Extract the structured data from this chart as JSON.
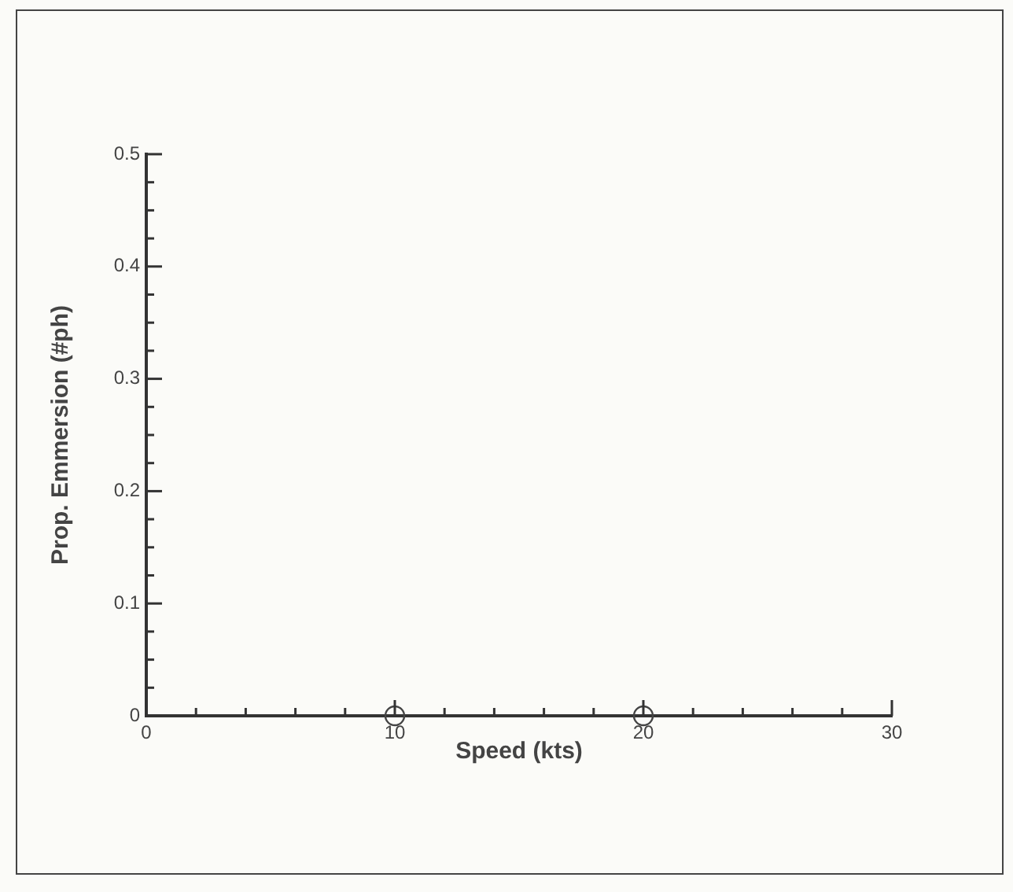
{
  "chart_data": {
    "type": "scatter",
    "xlabel": "Speed (kts)",
    "ylabel": "Prop. Emmersion (#ph)",
    "series": [
      {
        "x": [
          10,
          20
        ],
        "values": [
          0,
          0
        ],
        "color": "#444444"
      }
    ],
    "marker": "circle",
    "grid": false,
    "legend": false,
    "xlim": [
      0,
      30
    ],
    "xticks": [
      0,
      {
        "value": 2,
        "label": null
      },
      {
        "value": 4,
        "label": null
      },
      {
        "value": 6,
        "label": null
      },
      {
        "value": 8,
        "label": null
      },
      10,
      {
        "value": 12,
        "label": null
      },
      {
        "value": 14,
        "label": null
      },
      {
        "value": 16,
        "label": null
      },
      {
        "value": 18,
        "label": null
      },
      20,
      {
        "value": 22,
        "label": null
      },
      {
        "value": 24,
        "label": null
      },
      {
        "value": 26,
        "label": null
      },
      {
        "value": 28,
        "label": null
      },
      30
    ],
    "ylim": [
      0,
      0.5
    ],
    "yticks": [
      0,
      {
        "value": 0.025,
        "label": null
      },
      {
        "value": 0.05,
        "label": null
      },
      {
        "value": 0.075,
        "label": null
      },
      0.1,
      {
        "value": 0.125,
        "label": null
      },
      {
        "value": 0.15,
        "label": null
      },
      {
        "value": 0.175,
        "label": null
      },
      0.2,
      {
        "value": 0.225,
        "label": null
      },
      {
        "value": 0.25,
        "label": null
      },
      {
        "value": 0.275,
        "label": null
      },
      0.3,
      {
        "value": 0.325,
        "label": null
      },
      {
        "value": 0.35,
        "label": null
      },
      {
        "value": 0.375,
        "label": null
      },
      0.4,
      {
        "value": 0.425,
        "label": null
      },
      {
        "value": 0.45,
        "label": null
      },
      {
        "value": 0.475,
        "label": null
      },
      0.5
    ]
  }
}
